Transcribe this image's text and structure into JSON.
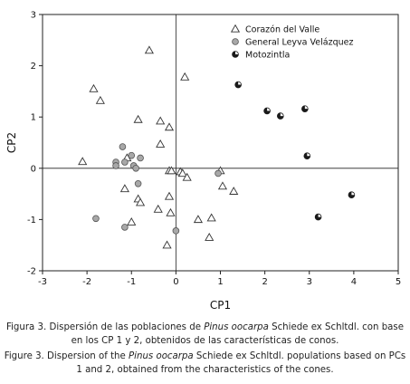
{
  "chart_data": {
    "type": "scatter",
    "xlabel": "CP1",
    "ylabel": "CP2",
    "xlim": [
      -3,
      5
    ],
    "ylim": [
      -2,
      3
    ],
    "xticks": [
      "-3",
      "-2",
      "-1",
      "0",
      "1",
      "2",
      "3",
      "4",
      "5"
    ],
    "yticks": [
      "-2",
      "-1",
      "0",
      "1",
      "2",
      "3"
    ],
    "legend_position": "top-right",
    "reference_lines": {
      "x": 0,
      "y": 0
    },
    "series": [
      {
        "name": "Corazón del Valle",
        "marker": "triangle-open",
        "points": [
          [
            -0.6,
            2.3
          ],
          [
            0.2,
            1.78
          ],
          [
            -1.85,
            1.55
          ],
          [
            -1.7,
            1.32
          ],
          [
            -0.85,
            0.95
          ],
          [
            -0.35,
            0.92
          ],
          [
            -0.15,
            0.8
          ],
          [
            -2.1,
            0.13
          ],
          [
            -0.35,
            0.47
          ],
          [
            -1.1,
            0.2
          ],
          [
            -1.15,
            -0.4
          ],
          [
            -0.85,
            -0.6
          ],
          [
            -0.8,
            -0.67
          ],
          [
            -0.15,
            -0.05
          ],
          [
            -0.1,
            -0.05
          ],
          [
            0.1,
            -0.07
          ],
          [
            0.15,
            -0.1
          ],
          [
            0.25,
            -0.18
          ],
          [
            1.0,
            -0.05
          ],
          [
            1.05,
            -0.35
          ],
          [
            1.3,
            -0.45
          ],
          [
            -0.15,
            -0.55
          ],
          [
            -0.4,
            -0.8
          ],
          [
            -0.12,
            -0.87
          ],
          [
            -1.0,
            -1.05
          ],
          [
            0.5,
            -1.0
          ],
          [
            0.8,
            -0.97
          ],
          [
            0.75,
            -1.35
          ],
          [
            -0.2,
            -1.5
          ]
        ]
      },
      {
        "name": "General Leyva Velázquez",
        "marker": "circle-gray",
        "points": [
          [
            -1.2,
            0.42
          ],
          [
            -1.0,
            0.25
          ],
          [
            -1.35,
            0.12
          ],
          [
            -1.35,
            0.05
          ],
          [
            -1.15,
            0.12
          ],
          [
            -0.95,
            0.05
          ],
          [
            -0.8,
            0.2
          ],
          [
            -0.85,
            -0.3
          ],
          [
            -0.9,
            0.0
          ],
          [
            -1.15,
            -1.15
          ],
          [
            -1.8,
            -0.98
          ],
          [
            0.0,
            -1.22
          ],
          [
            0.95,
            -0.1
          ]
        ]
      },
      {
        "name": "Motozintla",
        "marker": "circle-half",
        "points": [
          [
            1.4,
            1.63
          ],
          [
            2.05,
            1.12
          ],
          [
            2.35,
            1.02
          ],
          [
            2.9,
            1.16
          ],
          [
            2.95,
            0.24
          ],
          [
            3.2,
            -0.95
          ],
          [
            3.95,
            -0.52
          ]
        ]
      }
    ]
  },
  "caption_es": {
    "pre": "Figura 3. Dispersión de las poblaciones de ",
    "species": "Pinus oocarpa",
    "post": " Schiede ex Schltdl. con base en los CP 1 y 2, obtenidos de las características de conos."
  },
  "caption_en": {
    "pre": "Figure 3. Dispersion of the ",
    "species": "Pinus oocarpa",
    "post": " Schiede ex Schltdl. populations based on PCs 1 and 2, obtained from the characteristics of the cones."
  },
  "colors": {
    "axis": "#222222",
    "triangle_stroke": "#333333",
    "circle_gray_fill": "#a8a8a8",
    "half_dark": "#1a1a1a"
  }
}
